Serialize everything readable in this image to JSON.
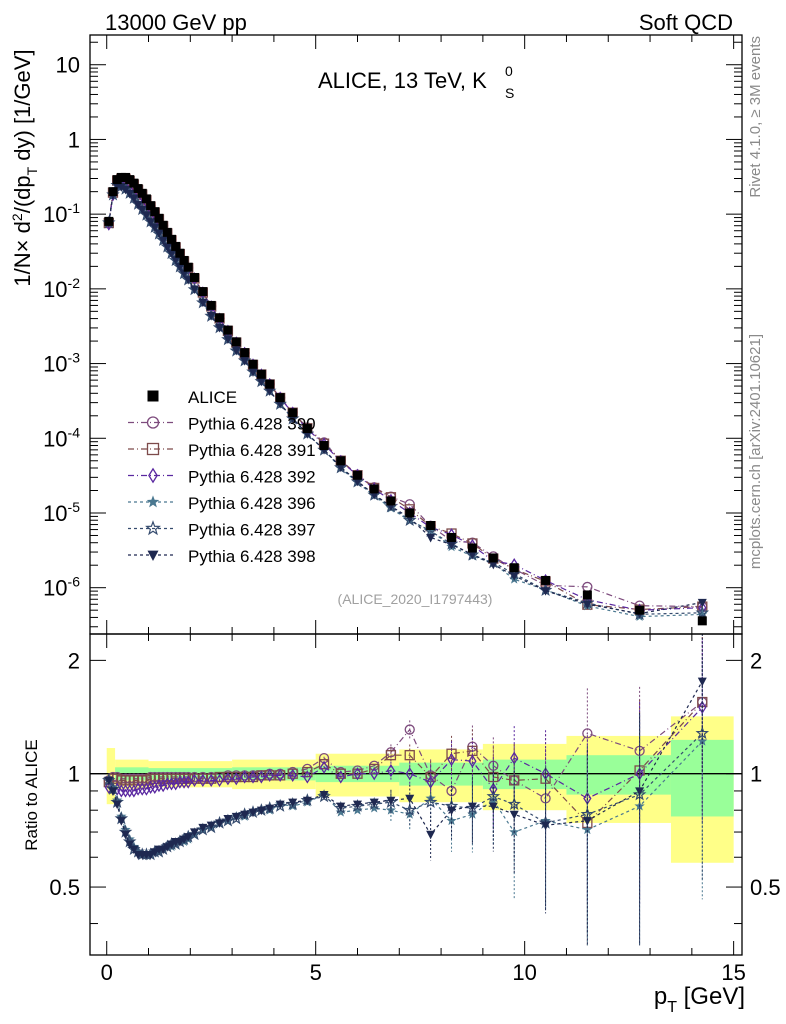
{
  "header": {
    "left": "13000 GeV pp",
    "right": "Soft QCD"
  },
  "side_notes": {
    "rivet": "Rivet 4.1.0, ≥ 3M events",
    "mcplots": "mcplots.cern.ch [arXiv:2401.10621]"
  },
  "chart_data": {
    "type": "scatter",
    "title_main": "ALICE, 13 TeV, K",
    "title_sup": "0",
    "title_sub": "S",
    "watermark": "(ALICE_2020_I1797443)",
    "xlabel_main": "p",
    "xlabel_sub": "T",
    "xlabel_unit": " [GeV]",
    "ylabel": "1/N × d²/(dp_T dy) [1/GeV]",
    "ylabel_parts": [
      "1/N",
      "×",
      " d",
      "2",
      "/(dp",
      "T",
      " dy) [1/GeV]"
    ],
    "xlim": [
      -0.4,
      15.2
    ],
    "ylim_top": [
      2.4e-07,
      25
    ],
    "ylim_ratio": [
      0.33,
      2.35
    ],
    "x_ticks": [
      0,
      5,
      10,
      15
    ],
    "x_tick_labels": [
      "0",
      "5",
      "10",
      "15"
    ],
    "y_ticks_top": [
      1e-06,
      1e-05,
      0.0001,
      0.001,
      0.01,
      0.1,
      1,
      10
    ],
    "y_tick_labels_top": [
      [
        "10",
        "-6"
      ],
      [
        "10",
        "-5"
      ],
      [
        "10",
        "-4"
      ],
      [
        "10",
        "-3"
      ],
      [
        "10",
        "-2"
      ],
      [
        "10",
        "-1"
      ],
      [
        "1",
        ""
      ],
      [
        "10",
        ""
      ]
    ],
    "ratio_ylabel": "Ratio to ALICE",
    "ratio_ticks": [
      0.5,
      1,
      2
    ],
    "ratio_tick_labels": [
      "0.5",
      "1",
      "2"
    ],
    "data": {
      "name": "ALICE",
      "x": [
        0.05,
        0.15,
        0.25,
        0.35,
        0.45,
        0.55,
        0.65,
        0.75,
        0.85,
        0.95,
        1.05,
        1.15,
        1.25,
        1.35,
        1.45,
        1.55,
        1.65,
        1.75,
        1.85,
        1.95,
        2.1,
        2.3,
        2.5,
        2.7,
        2.9,
        3.1,
        3.3,
        3.5,
        3.7,
        3.9,
        4.15,
        4.45,
        4.8,
        5.2,
        5.6,
        6.0,
        6.4,
        6.8,
        7.25,
        7.75,
        8.25,
        8.75,
        9.25,
        9.75,
        10.5,
        11.5,
        12.75,
        14.25
      ],
      "y": [
        0.08,
        0.2,
        0.29,
        0.31,
        0.31,
        0.29,
        0.26,
        0.22,
        0.19,
        0.16,
        0.13,
        0.108,
        0.088,
        0.071,
        0.057,
        0.046,
        0.037,
        0.03,
        0.024,
        0.0195,
        0.0142,
        0.0092,
        0.006,
        0.0041,
        0.0028,
        0.00195,
        0.0014,
        0.00098,
        0.00072,
        0.00053,
        0.00035,
        0.00022,
        0.000135,
        8e-05,
        5e-05,
        3.2e-05,
        2.1e-05,
        1.45e-05,
        1e-05,
        6.8e-06,
        4.7e-06,
        3.4e-06,
        2.5e-06,
        1.85e-06,
        1.25e-06,
        8e-07,
        5e-07,
        3.6e-07
      ],
      "err_inner": [
        [
          0.2,
          1.0,
          0.04
        ],
        [
          1.0,
          3.0,
          0.035
        ],
        [
          3.0,
          5.0,
          0.04
        ],
        [
          5.0,
          7.0,
          0.05
        ],
        [
          7.0,
          9.0,
          0.07
        ],
        [
          9.0,
          11.0,
          0.09
        ],
        [
          11.0,
          13.5,
          0.12
        ],
        [
          13.5,
          15.0,
          0.23
        ]
      ],
      "err_outer": [
        [
          0.0,
          0.2,
          0.17
        ],
        [
          0.2,
          1.0,
          0.09
        ],
        [
          1.0,
          3.0,
          0.08
        ],
        [
          3.0,
          5.0,
          0.09
        ],
        [
          5.0,
          7.0,
          0.13
        ],
        [
          7.0,
          9.0,
          0.16
        ],
        [
          9.0,
          11.0,
          0.2
        ],
        [
          11.0,
          13.5,
          0.26
        ],
        [
          13.5,
          15.0,
          0.42
        ]
      ]
    },
    "series": [
      {
        "name": "Pythia 6.428 390",
        "color": "#7d4b7d",
        "marker": "circle-open",
        "dash": "6,3,1,3",
        "x": [
          0.05,
          0.15,
          0.25,
          0.35,
          0.45,
          0.55,
          0.65,
          0.75,
          0.85,
          0.95,
          1.05,
          1.15,
          1.25,
          1.35,
          1.45,
          1.55,
          1.65,
          1.75,
          1.85,
          1.95,
          2.1,
          2.3,
          2.5,
          2.7,
          2.9,
          3.1,
          3.3,
          3.5,
          3.7,
          3.9,
          4.15,
          4.45,
          4.8,
          5.2,
          5.6,
          6.0,
          6.4,
          6.8,
          7.25,
          7.75,
          8.25,
          8.75,
          9.25,
          9.75,
          10.5,
          11.5,
          12.75,
          14.25
        ],
        "r": [
          0.96,
          0.98,
          0.98,
          0.97,
          0.97,
          0.97,
          0.97,
          0.97,
          0.97,
          0.97,
          0.98,
          0.98,
          0.98,
          0.98,
          0.98,
          0.98,
          0.98,
          0.98,
          0.98,
          0.98,
          0.98,
          0.98,
          0.98,
          0.98,
          0.99,
          0.99,
          0.99,
          0.99,
          0.99,
          1.0,
          1.0,
          1.01,
          1.03,
          1.1,
          1.01,
          1.02,
          1.05,
          1.14,
          1.31,
          0.99,
          0.9,
          1.18,
          1.05,
          0.96,
          0.86,
          1.28,
          1.15,
          1.55
        ]
      },
      {
        "name": "Pythia 6.428 391",
        "color": "#7d4b4b",
        "marker": "square-open",
        "dash": "6,3,1,3",
        "x": [
          0.05,
          0.15,
          0.25,
          0.35,
          0.45,
          0.55,
          0.65,
          0.75,
          0.85,
          0.95,
          1.05,
          1.15,
          1.25,
          1.35,
          1.45,
          1.55,
          1.65,
          1.75,
          1.85,
          1.95,
          2.1,
          2.3,
          2.5,
          2.7,
          2.9,
          3.1,
          3.3,
          3.5,
          3.7,
          3.9,
          4.15,
          4.45,
          4.8,
          5.2,
          5.6,
          6.0,
          6.4,
          6.8,
          7.25,
          7.75,
          8.25,
          8.75,
          9.25,
          9.75,
          10.5,
          11.5,
          12.75,
          14.25
        ],
        "r": [
          0.95,
          0.97,
          0.97,
          0.96,
          0.96,
          0.96,
          0.96,
          0.96,
          0.96,
          0.96,
          0.97,
          0.97,
          0.97,
          0.97,
          0.97,
          0.97,
          0.97,
          0.97,
          0.97,
          0.97,
          0.97,
          0.97,
          0.97,
          0.98,
          0.98,
          0.98,
          0.98,
          0.98,
          0.99,
          0.99,
          0.99,
          1.0,
          1.01,
          1.06,
          1.0,
          1.0,
          1.03,
          1.12,
          1.12,
          0.98,
          1.13,
          1.15,
          0.98,
          0.96,
          0.97,
          0.74,
          1.02,
          1.55
        ]
      },
      {
        "name": "Pythia 6.428 392",
        "color": "#5a28a0",
        "marker": "diamond-open",
        "dash": "6,3,1,3",
        "x": [
          0.05,
          0.15,
          0.25,
          0.35,
          0.45,
          0.55,
          0.65,
          0.75,
          0.85,
          0.95,
          1.05,
          1.15,
          1.25,
          1.35,
          1.45,
          1.55,
          1.65,
          1.75,
          1.85,
          1.95,
          2.1,
          2.3,
          2.5,
          2.7,
          2.9,
          3.1,
          3.3,
          3.5,
          3.7,
          3.9,
          4.15,
          4.45,
          4.8,
          5.2,
          5.6,
          6.0,
          6.4,
          6.8,
          7.25,
          7.75,
          8.25,
          8.75,
          9.25,
          9.75,
          10.5,
          11.5,
          12.75,
          14.25
        ],
        "r": [
          0.92,
          0.91,
          0.91,
          0.9,
          0.9,
          0.9,
          0.9,
          0.91,
          0.91,
          0.91,
          0.92,
          0.92,
          0.93,
          0.93,
          0.94,
          0.94,
          0.94,
          0.95,
          0.95,
          0.95,
          0.96,
          0.96,
          0.96,
          0.96,
          0.97,
          0.97,
          0.98,
          0.98,
          0.98,
          0.99,
          0.99,
          0.99,
          0.98,
          1.04,
          0.98,
          1.0,
          1.0,
          1.02,
          1.0,
          0.95,
          1.09,
          1.08,
          0.91,
          1.1,
          1.0,
          0.86,
          1.0,
          1.5
        ]
      },
      {
        "name": "Pythia 6.428 396",
        "color": "#4a7890",
        "marker": "star-filled",
        "dash": "3,3",
        "x": [
          0.05,
          0.15,
          0.25,
          0.35,
          0.45,
          0.55,
          0.65,
          0.75,
          0.85,
          0.95,
          1.05,
          1.15,
          1.25,
          1.35,
          1.45,
          1.55,
          1.65,
          1.75,
          1.85,
          1.95,
          2.1,
          2.3,
          2.5,
          2.7,
          2.9,
          3.1,
          3.3,
          3.5,
          3.7,
          3.9,
          4.15,
          4.45,
          4.8,
          5.2,
          5.6,
          6.0,
          6.4,
          6.8,
          7.25,
          7.75,
          8.25,
          8.75,
          9.25,
          9.75,
          10.5,
          11.5,
          12.75,
          14.25
        ],
        "r": [
          0.97,
          0.92,
          0.85,
          0.77,
          0.71,
          0.67,
          0.64,
          0.62,
          0.61,
          0.61,
          0.61,
          0.62,
          0.62,
          0.63,
          0.64,
          0.64,
          0.65,
          0.66,
          0.66,
          0.67,
          0.69,
          0.71,
          0.72,
          0.74,
          0.75,
          0.77,
          0.77,
          0.79,
          0.8,
          0.8,
          0.83,
          0.82,
          0.84,
          0.88,
          0.79,
          0.8,
          0.81,
          0.8,
          0.78,
          0.86,
          0.75,
          0.78,
          0.85,
          0.7,
          0.75,
          0.71,
          0.82,
          1.22
        ]
      },
      {
        "name": "Pythia 6.428 397",
        "color": "#354b6e",
        "marker": "star-open",
        "dash": "3,3",
        "x": [
          0.05,
          0.15,
          0.25,
          0.35,
          0.45,
          0.55,
          0.65,
          0.75,
          0.85,
          0.95,
          1.05,
          1.15,
          1.25,
          1.35,
          1.45,
          1.55,
          1.65,
          1.75,
          1.85,
          1.95,
          2.1,
          2.3,
          2.5,
          2.7,
          2.9,
          3.1,
          3.3,
          3.5,
          3.7,
          3.9,
          4.15,
          4.45,
          4.8,
          5.2,
          5.6,
          6.0,
          6.4,
          6.8,
          7.25,
          7.75,
          8.25,
          8.75,
          9.25,
          9.75,
          10.5,
          11.5,
          12.75,
          14.25
        ],
        "r": [
          0.96,
          0.91,
          0.84,
          0.76,
          0.7,
          0.66,
          0.63,
          0.62,
          0.61,
          0.61,
          0.61,
          0.62,
          0.62,
          0.63,
          0.64,
          0.65,
          0.65,
          0.66,
          0.67,
          0.68,
          0.69,
          0.71,
          0.72,
          0.74,
          0.75,
          0.76,
          0.78,
          0.79,
          0.8,
          0.81,
          0.82,
          0.83,
          0.85,
          0.87,
          0.81,
          0.82,
          0.83,
          0.84,
          0.8,
          0.84,
          0.82,
          0.81,
          0.87,
          0.83,
          0.74,
          0.78,
          0.88,
          1.28
        ]
      },
      {
        "name": "Pythia 6.428 398",
        "color": "#1e2850",
        "marker": "triangle-down-filled",
        "dash": "3,3",
        "x": [
          0.05,
          0.15,
          0.25,
          0.35,
          0.45,
          0.55,
          0.65,
          0.75,
          0.85,
          0.95,
          1.05,
          1.15,
          1.25,
          1.35,
          1.45,
          1.55,
          1.65,
          1.75,
          1.85,
          1.95,
          2.1,
          2.3,
          2.5,
          2.7,
          2.9,
          3.1,
          3.3,
          3.5,
          3.7,
          3.9,
          4.15,
          4.45,
          4.8,
          5.2,
          5.6,
          6.0,
          6.4,
          6.8,
          7.25,
          7.75,
          8.25,
          8.75,
          9.25,
          9.75,
          10.5,
          11.5,
          12.75,
          14.25
        ],
        "r": [
          0.96,
          0.9,
          0.83,
          0.75,
          0.69,
          0.65,
          0.63,
          0.61,
          0.61,
          0.61,
          0.61,
          0.62,
          0.63,
          0.63,
          0.64,
          0.65,
          0.66,
          0.66,
          0.67,
          0.68,
          0.7,
          0.72,
          0.73,
          0.74,
          0.76,
          0.77,
          0.78,
          0.79,
          0.8,
          0.81,
          0.83,
          0.84,
          0.85,
          0.88,
          0.82,
          0.83,
          0.84,
          0.85,
          0.86,
          0.69,
          0.8,
          0.82,
          0.82,
          0.78,
          0.73,
          0.75,
          0.9,
          1.76
        ]
      }
    ]
  }
}
